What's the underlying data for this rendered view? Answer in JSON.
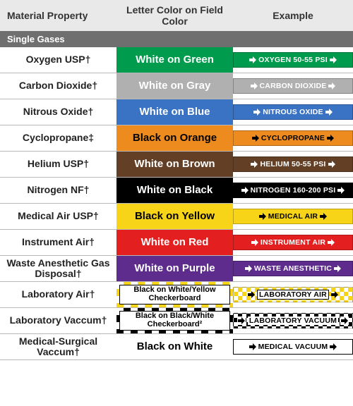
{
  "headers": {
    "material": "Material Property",
    "color": "Letter Color on Field Color",
    "example": "Example"
  },
  "section_title": "Single Gases",
  "rows": [
    {
      "material": "Oxygen USP†",
      "color_label": "White on Green",
      "field_bg": "#009b4c",
      "field_fg": "#ffffff",
      "example_text": "OXYGEN 50-55 PSI",
      "example_bg": "#009b4c",
      "example_fg": "#ffffff",
      "example_arrow_fill": "#ffffff",
      "example_pattern": "solid"
    },
    {
      "material": "Carbon Dioxide†",
      "color_label": "White on Gray",
      "field_bg": "#b0b0b0",
      "field_fg": "#ffffff",
      "example_text": "CARBON DIOXIDE",
      "example_bg": "#b0b0b0",
      "example_fg": "#ffffff",
      "example_arrow_fill": "#ffffff",
      "example_pattern": "solid"
    },
    {
      "material": "Nitrous Oxide†",
      "color_label": "White on Blue",
      "field_bg": "#3b73c4",
      "field_fg": "#ffffff",
      "example_text": "NITROUS OXIDE",
      "example_bg": "#3b73c4",
      "example_fg": "#ffffff",
      "example_arrow_fill": "#ffffff",
      "example_pattern": "solid"
    },
    {
      "material": "Cyclopropane‡",
      "color_label": "Black on Orange",
      "field_bg": "#ed8b1f",
      "field_fg": "#000000",
      "example_text": "CYCLOPROPANE",
      "example_bg": "#ed8b1f",
      "example_fg": "#000000",
      "example_arrow_fill": "#000000",
      "example_pattern": "solid"
    },
    {
      "material": "Helium USP†",
      "color_label": "White on Brown",
      "field_bg": "#633f26",
      "field_fg": "#ffffff",
      "example_text": "HELIUM 50-55 PSI",
      "example_bg": "#633f26",
      "example_fg": "#ffffff",
      "example_arrow_fill": "#ffffff",
      "example_pattern": "solid"
    },
    {
      "material": "Nitrogen NF†",
      "color_label": "White on Black",
      "field_bg": "#000000",
      "field_fg": "#ffffff",
      "example_text": "NITROGEN 160-200 PSI",
      "example_bg": "#000000",
      "example_fg": "#ffffff",
      "example_arrow_fill": "#ffffff",
      "example_pattern": "solid"
    },
    {
      "material": "Medical Air USP†",
      "color_label": "Black on Yellow",
      "field_bg": "#f7d417",
      "field_fg": "#000000",
      "example_text": "MEDICAL AIR",
      "example_bg": "#f7d417",
      "example_fg": "#000000",
      "example_arrow_fill": "#000000",
      "example_pattern": "solid"
    },
    {
      "material": "Instrument Air†",
      "color_label": "White on Red",
      "field_bg": "#e3201f",
      "field_fg": "#ffffff",
      "example_text": "INSTRUMENT AIR",
      "example_bg": "#e3201f",
      "example_fg": "#ffffff",
      "example_arrow_fill": "#ffffff",
      "example_pattern": "solid"
    },
    {
      "material": "Waste Anesthetic Gas Disposal†",
      "color_label": "White on Purple",
      "field_bg": "#5d2c8c",
      "field_fg": "#ffffff",
      "example_text": "WASTE ANESTHETIC",
      "example_bg": "#5d2c8c",
      "example_fg": "#ffffff",
      "example_arrow_fill": "#ffffff",
      "example_pattern": "solid"
    },
    {
      "material": "Laboratory Air†",
      "color_label": "Black on White/Yellow Checkerboard",
      "field_bg": "checker-yw",
      "field_fg": "#000000",
      "example_text": "LABORATORY AIR",
      "example_bg": "checker-yw",
      "example_fg": "#000000",
      "example_arrow_fill": "#000000",
      "example_pattern": "checker-yw",
      "checker_c1": "#f7d417",
      "checker_c2": "#ffffff",
      "checker_size": 10
    },
    {
      "material": "Laboratory Vaccum†",
      "color_label": "Black on Black/White Checkerboard²",
      "field_bg": "checker-bw",
      "field_fg": "#000000",
      "example_text": "LABORATORY VACUUM",
      "example_bg": "checker-bw",
      "example_fg": "#000000",
      "example_arrow_fill": "#000000",
      "example_pattern": "checker-bw",
      "checker_c1": "#000000",
      "checker_c2": "#ffffff",
      "checker_size": 10,
      "example_inner_bg": "#ffffff"
    },
    {
      "material": "Medical-Surgical Vaccum†",
      "color_label": "Black on White",
      "field_bg": "#ffffff",
      "field_fg": "#000000",
      "example_text": "MEDICAL VACUUM",
      "example_bg": "#ffffff",
      "example_fg": "#000000",
      "example_arrow_fill": "#000000",
      "example_pattern": "solid",
      "example_border": "#000000"
    }
  ],
  "arrow_svg_w": 12,
  "arrow_svg_h": 12
}
